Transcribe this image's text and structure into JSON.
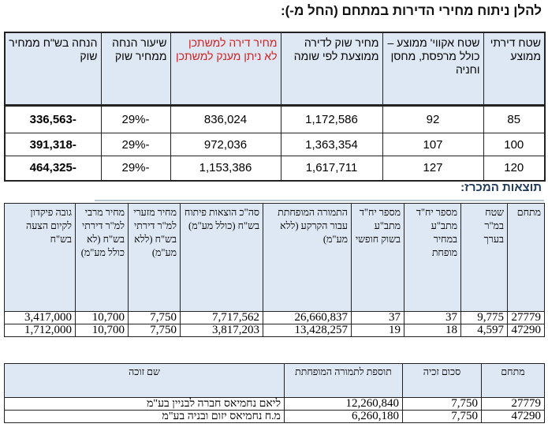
{
  "table1": {
    "title": "להלן ניתוח מחירי הדירות במתחם (החל מ-):",
    "headers": [
      "שטח דירתי ממוצע",
      "שטח אקווי' ממוצע – כולל מרפסת, מחסן וחניה",
      "מחיר שוק לדירה ממוצעת לפי שומה",
      "מחיר דירה למשתכן לא ניתן מענק למשתכן",
      "שיעור הנחה ממחיר שוק",
      "הנחה בש\"ח ממחיר שוק"
    ],
    "rows": [
      [
        "85",
        "92",
        "1,172,586",
        "836,024",
        "-29%",
        "-336,563"
      ],
      [
        "100",
        "107",
        "1,363,354",
        "972,036",
        "-29%",
        "-391,318"
      ],
      [
        "120",
        "127",
        "1,617,711",
        "1,153,386",
        "-29%",
        "-464,325"
      ]
    ],
    "highlight_color": "#d12020",
    "header_bg": "#dde8f4"
  },
  "table2": {
    "title": "תוצאות המכרז:",
    "headers": [
      "מתחם",
      "שטח במ\"ר בערך",
      "מספר יח\"ד מתב\"ע במחיר מופחת",
      "מספר יח\"ד מתב\"ע בשוק חופשי",
      "התמורה המופחתת עבור הקרקע (ללא מע\"מ)",
      "סה\"כ הוצאות פיתוח בש\"ח (כולל מע\"מ)",
      "מחיר מזערי למ\"ר דירתי בש\"ח (ללא מע\"מ)",
      "מחיר מרבי למ\"ר דירתי בש\"ח (לא כולל מע\"מ)",
      "גובה פיקדון לקיום הצעה בש\"ח"
    ],
    "rows": [
      [
        "27779",
        "9,775",
        "37",
        "37",
        "26,660,837",
        "7,717,562",
        "7,750",
        "10,700",
        "3,417,000"
      ],
      [
        "47290",
        "4,597",
        "18",
        "19",
        "13,428,257",
        "3,817,203",
        "7,750",
        "10,700",
        "1,712,000"
      ]
    ]
  },
  "table3": {
    "headers": [
      "מתחם",
      "סכום זכיה",
      "תוספת לתמורה המופחתת",
      "שם זוכה"
    ],
    "rows": [
      [
        "27779",
        "7,750",
        "12,260,840",
        "ליאם נחמיאס חברה לבניין בע\"מ"
      ],
      [
        "47290",
        "7,750",
        "6,260,180",
        "מ.ח נחמיאס יזום ובניה בע\"מ"
      ]
    ]
  }
}
